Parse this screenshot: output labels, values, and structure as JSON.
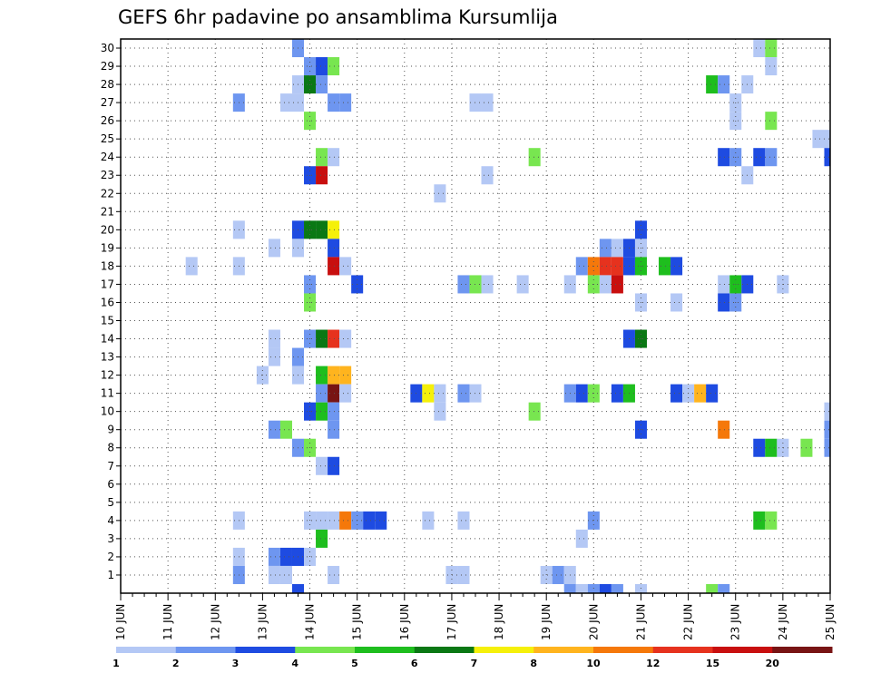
{
  "chart_data": {
    "type": "heatmap",
    "title": "GEFS 6hr padavine po ansamblima Kursumlija",
    "x_ticks": [
      "10 JUN",
      "11 JUN",
      "12 JUN",
      "13 JUN",
      "14 JUN",
      "15 JUN",
      "16 JUN",
      "17 JUN",
      "18 JUN",
      "19 JUN",
      "20 JUN",
      "21 JUN",
      "22 JUN",
      "23 JUN",
      "24 JUN",
      "25 JUN"
    ],
    "y_ticks": [
      1,
      2,
      3,
      4,
      5,
      6,
      7,
      8,
      9,
      10,
      11,
      12,
      13,
      14,
      15,
      16,
      17,
      18,
      19,
      20,
      21,
      22,
      23,
      24,
      25,
      26,
      27,
      28,
      29,
      30
    ],
    "x_range": [
      "10 JUN",
      "25 JUN"
    ],
    "y_range": [
      0,
      30
    ],
    "time_step_hours": 6,
    "grid": "dotted",
    "legend": {
      "position": "bottom",
      "colors": [
        "#b4c8f5",
        "#6e96f0",
        "#1e4be1",
        "#78e650",
        "#1ebe1e",
        "#0a7814",
        "#f5f00a",
        "#ffb41e",
        "#f5780a",
        "#e6321e",
        "#c80f0f",
        "#781414"
      ],
      "labels": [
        "1",
        "2",
        "3",
        "4",
        "5",
        "6",
        "7",
        "8",
        "10",
        "12",
        "15",
        "20"
      ]
    },
    "cells": [
      [
        "13 JUN 18Z",
        30,
        "#6e96f0"
      ],
      [
        "23 JUN 12Z",
        30,
        "#b4c8f5"
      ],
      [
        "23 JUN 18Z",
        30,
        "#78e650"
      ],
      [
        "14 JUN 00Z",
        29,
        "#6e96f0"
      ],
      [
        "14 JUN 06Z",
        29,
        "#1e4be1"
      ],
      [
        "14 JUN 12Z",
        29,
        "#78e650"
      ],
      [
        "23 JUN 18Z",
        29,
        "#b4c8f5"
      ],
      [
        "13 JUN 18Z",
        28,
        "#b4c8f5"
      ],
      [
        "14 JUN 00Z",
        28,
        "#0a7814"
      ],
      [
        "14 JUN 06Z",
        28,
        "#6e96f0"
      ],
      [
        "22 JUN 12Z",
        28,
        "#1ebe1e"
      ],
      [
        "22 JUN 18Z",
        28,
        "#6e96f0"
      ],
      [
        "23 JUN 06Z",
        28,
        "#b4c8f5"
      ],
      [
        "12 JUN 12Z",
        27,
        "#6e96f0"
      ],
      [
        "13 JUN 12Z",
        27,
        "#b4c8f5"
      ],
      [
        "13 JUN 18Z",
        27,
        "#b4c8f5"
      ],
      [
        "14 JUN 12Z",
        27,
        "#6e96f0"
      ],
      [
        "14 JUN 18Z",
        27,
        "#6e96f0"
      ],
      [
        "17 JUN 12Z",
        27,
        "#b4c8f5"
      ],
      [
        "17 JUN 18Z",
        27,
        "#b4c8f5"
      ],
      [
        "23 JUN 00Z",
        27,
        "#b4c8f5"
      ],
      [
        "14 JUN 00Z",
        26,
        "#78e650"
      ],
      [
        "23 JUN 00Z",
        26,
        "#b4c8f5"
      ],
      [
        "23 JUN 18Z",
        26,
        "#78e650"
      ],
      [
        "24 JUN 18Z",
        25,
        "#b4c8f5"
      ],
      [
        "25 JUN 00Z",
        25,
        "#b4c8f5"
      ],
      [
        "14 JUN 06Z",
        24,
        "#78e650"
      ],
      [
        "14 JUN 12Z",
        24,
        "#b4c8f5"
      ],
      [
        "18 JUN 18Z",
        24,
        "#78e650"
      ],
      [
        "22 JUN 18Z",
        24,
        "#1e4be1"
      ],
      [
        "23 JUN 00Z",
        24,
        "#6e96f0"
      ],
      [
        "23 JUN 12Z",
        24,
        "#1e4be1"
      ],
      [
        "23 JUN 18Z",
        24,
        "#6e96f0"
      ],
      [
        "25 JUN 00Z",
        24,
        "#1e4be1"
      ],
      [
        "14 JUN 00Z",
        23,
        "#1e4be1"
      ],
      [
        "14 JUN 06Z",
        23,
        "#c80f0f"
      ],
      [
        "17 JUN 18Z",
        23,
        "#b4c8f5"
      ],
      [
        "23 JUN 06Z",
        23,
        "#b4c8f5"
      ],
      [
        "16 JUN 18Z",
        22,
        "#b4c8f5"
      ],
      [
        "12 JUN 12Z",
        20,
        "#b4c8f5"
      ],
      [
        "13 JUN 18Z",
        20,
        "#1e4be1"
      ],
      [
        "14 JUN 00Z",
        20,
        "#0a7814"
      ],
      [
        "14 JUN 06Z",
        20,
        "#0a7814"
      ],
      [
        "14 JUN 12Z",
        20,
        "#f5f00a"
      ],
      [
        "21 JUN 00Z",
        20,
        "#1e4be1"
      ],
      [
        "13 JUN 06Z",
        19,
        "#b4c8f5"
      ],
      [
        "13 JUN 18Z",
        19,
        "#b4c8f5"
      ],
      [
        "14 JUN 12Z",
        19,
        "#1e4be1"
      ],
      [
        "20 JUN 06Z",
        19,
        "#6e96f0"
      ],
      [
        "20 JUN 12Z",
        19,
        "#b4c8f5"
      ],
      [
        "20 JUN 18Z",
        19,
        "#1e4be1"
      ],
      [
        "21 JUN 00Z",
        19,
        "#b4c8f5"
      ],
      [
        "11 JUN 12Z",
        18,
        "#b4c8f5"
      ],
      [
        "12 JUN 12Z",
        18,
        "#b4c8f5"
      ],
      [
        "14 JUN 12Z",
        18,
        "#c80f0f"
      ],
      [
        "14 JUN 18Z",
        18,
        "#b4c8f5"
      ],
      [
        "19 JUN 18Z",
        18,
        "#6e96f0"
      ],
      [
        "20 JUN 00Z",
        18,
        "#f5780a"
      ],
      [
        "20 JUN 06Z",
        18,
        "#e6321e"
      ],
      [
        "20 JUN 12Z",
        18,
        "#e6321e"
      ],
      [
        "20 JUN 18Z",
        18,
        "#1e4be1"
      ],
      [
        "21 JUN 00Z",
        18,
        "#1ebe1e"
      ],
      [
        "21 JUN 12Z",
        18,
        "#1ebe1e"
      ],
      [
        "21 JUN 18Z",
        18,
        "#1e4be1"
      ],
      [
        "14 JUN 00Z",
        17,
        "#6e96f0"
      ],
      [
        "15 JUN 00Z",
        17,
        "#1e4be1"
      ],
      [
        "17 JUN 06Z",
        17,
        "#6e96f0"
      ],
      [
        "17 JUN 12Z",
        17,
        "#78e650"
      ],
      [
        "17 JUN 18Z",
        17,
        "#b4c8f5"
      ],
      [
        "18 JUN 12Z",
        17,
        "#b4c8f5"
      ],
      [
        "19 JUN 12Z",
        17,
        "#b4c8f5"
      ],
      [
        "20 JUN 00Z",
        17,
        "#78e650"
      ],
      [
        "20 JUN 06Z",
        17,
        "#b4c8f5"
      ],
      [
        "20 JUN 12Z",
        17,
        "#c80f0f"
      ],
      [
        "22 JUN 18Z",
        17,
        "#b4c8f5"
      ],
      [
        "23 JUN 00Z",
        17,
        "#1ebe1e"
      ],
      [
        "23 JUN 06Z",
        17,
        "#1e4be1"
      ],
      [
        "24 JUN 00Z",
        17,
        "#b4c8f5"
      ],
      [
        "14 JUN 00Z",
        16,
        "#78e650"
      ],
      [
        "21 JUN 00Z",
        16,
        "#b4c8f5"
      ],
      [
        "21 JUN 18Z",
        16,
        "#b4c8f5"
      ],
      [
        "22 JUN 18Z",
        16,
        "#1e4be1"
      ],
      [
        "23 JUN 00Z",
        16,
        "#6e96f0"
      ],
      [
        "14 JUN 00Z",
        14,
        "#6e96f0"
      ],
      [
        "14 JUN 06Z",
        14,
        "#0a7814"
      ],
      [
        "14 JUN 12Z",
        14,
        "#e6321e"
      ],
      [
        "14 JUN 18Z",
        14,
        "#b4c8f5"
      ],
      [
        "20 JUN 18Z",
        14,
        "#1e4be1"
      ],
      [
        "21 JUN 00Z",
        14,
        "#0a7814"
      ],
      [
        "13 JUN 06Z",
        14,
        "#b4c8f5"
      ],
      [
        "13 JUN 06Z",
        13,
        "#b4c8f5"
      ],
      [
        "13 JUN 18Z",
        13,
        "#6e96f0"
      ],
      [
        "13 JUN 00Z",
        12,
        "#b4c8f5"
      ],
      [
        "13 JUN 18Z",
        12,
        "#b4c8f5"
      ],
      [
        "14 JUN 06Z",
        12,
        "#1ebe1e"
      ],
      [
        "14 JUN 12Z",
        12,
        "#ffb41e"
      ],
      [
        "14 JUN 18Z",
        12,
        "#ffb41e"
      ],
      [
        "14 JUN 06Z",
        11,
        "#6e96f0"
      ],
      [
        "14 JUN 12Z",
        11,
        "#781414"
      ],
      [
        "14 JUN 18Z",
        11,
        "#b4c8f5"
      ],
      [
        "16 JUN 06Z",
        11,
        "#1e4be1"
      ],
      [
        "16 JUN 12Z",
        11,
        "#f5f00a"
      ],
      [
        "16 JUN 18Z",
        11,
        "#b4c8f5"
      ],
      [
        "17 JUN 06Z",
        11,
        "#6e96f0"
      ],
      [
        "17 JUN 12Z",
        11,
        "#b4c8f5"
      ],
      [
        "19 JUN 12Z",
        11,
        "#6e96f0"
      ],
      [
        "19 JUN 18Z",
        11,
        "#1e4be1"
      ],
      [
        "20 JUN 00Z",
        11,
        "#78e650"
      ],
      [
        "20 JUN 12Z",
        11,
        "#1e4be1"
      ],
      [
        "20 JUN 18Z",
        11,
        "#1ebe1e"
      ],
      [
        "21 JUN 18Z",
        11,
        "#1e4be1"
      ],
      [
        "22 JUN 00Z",
        11,
        "#b4c8f5"
      ],
      [
        "22 JUN 06Z",
        11,
        "#ffb41e"
      ],
      [
        "22 JUN 12Z",
        11,
        "#1e4be1"
      ],
      [
        "14 JUN 00Z",
        10,
        "#1e4be1"
      ],
      [
        "14 JUN 06Z",
        10,
        "#1ebe1e"
      ],
      [
        "14 JUN 12Z",
        10,
        "#6e96f0"
      ],
      [
        "16 JUN 18Z",
        10,
        "#b4c8f5"
      ],
      [
        "18 JUN 18Z",
        10,
        "#78e650"
      ],
      [
        "25 JUN 00Z",
        10,
        "#b4c8f5"
      ],
      [
        "13 JUN 06Z",
        9,
        "#6e96f0"
      ],
      [
        "13 JUN 12Z",
        9,
        "#78e650"
      ],
      [
        "14 JUN 12Z",
        9,
        "#6e96f0"
      ],
      [
        "21 JUN 00Z",
        9,
        "#1e4be1"
      ],
      [
        "22 JUN 18Z",
        9,
        "#f5780a"
      ],
      [
        "25 JUN 00Z",
        9,
        "#6e96f0"
      ],
      [
        "13 JUN 18Z",
        8,
        "#6e96f0"
      ],
      [
        "14 JUN 00Z",
        8,
        "#78e650"
      ],
      [
        "23 JUN 12Z",
        8,
        "#1e4be1"
      ],
      [
        "23 JUN 18Z",
        8,
        "#1ebe1e"
      ],
      [
        "24 JUN 00Z",
        8,
        "#b4c8f5"
      ],
      [
        "24 JUN 12Z",
        8,
        "#78e650"
      ],
      [
        "25 JUN 00Z",
        8,
        "#6e96f0"
      ],
      [
        "14 JUN 06Z",
        7,
        "#b4c8f5"
      ],
      [
        "14 JUN 12Z",
        7,
        "#1e4be1"
      ],
      [
        "12 JUN 12Z",
        4,
        "#b4c8f5"
      ],
      [
        "14 JUN 00Z",
        4,
        "#b4c8f5"
      ],
      [
        "14 JUN 06Z",
        4,
        "#b4c8f5"
      ],
      [
        "14 JUN 12Z",
        4,
        "#b4c8f5"
      ],
      [
        "14 JUN 18Z",
        4,
        "#f5780a"
      ],
      [
        "15 JUN 00Z",
        4,
        "#6e96f0"
      ],
      [
        "15 JUN 06Z",
        4,
        "#1e4be1"
      ],
      [
        "15 JUN 12Z",
        4,
        "#1e4be1"
      ],
      [
        "16 JUN 12Z",
        4,
        "#b4c8f5"
      ],
      [
        "17 JUN 06Z",
        4,
        "#b4c8f5"
      ],
      [
        "20 JUN 00Z",
        4,
        "#6e96f0"
      ],
      [
        "23 JUN 12Z",
        4,
        "#1ebe1e"
      ],
      [
        "23 JUN 18Z",
        4,
        "#78e650"
      ],
      [
        "14 JUN 06Z",
        3,
        "#1ebe1e"
      ],
      [
        "19 JUN 18Z",
        3,
        "#b4c8f5"
      ],
      [
        "12 JUN 12Z",
        2,
        "#b4c8f5"
      ],
      [
        "13 JUN 12Z",
        2,
        "#1e4be1"
      ],
      [
        "13 JUN 18Z",
        2,
        "#1e4be1"
      ],
      [
        "13 JUN 06Z",
        2,
        "#6e96f0"
      ],
      [
        "14 JUN 00Z",
        2,
        "#b4c8f5"
      ],
      [
        "12 JUN 12Z",
        1,
        "#6e96f0"
      ],
      [
        "13 JUN 06Z",
        1,
        "#b4c8f5"
      ],
      [
        "13 JUN 12Z",
        1,
        "#b4c8f5"
      ],
      [
        "14 JUN 12Z",
        1,
        "#b4c8f5"
      ],
      [
        "17 JUN 00Z",
        1,
        "#b4c8f5"
      ],
      [
        "17 JUN 06Z",
        1,
        "#b4c8f5"
      ],
      [
        "19 JUN 00Z",
        1,
        "#b4c8f5"
      ],
      [
        "19 JUN 06Z",
        1,
        "#6e96f0"
      ],
      [
        "19 JUN 12Z",
        1,
        "#b4c8f5"
      ],
      [
        "13 JUN 18Z",
        0,
        "#1e4be1"
      ],
      [
        "19 JUN 12Z",
        0,
        "#6e96f0"
      ],
      [
        "19 JUN 18Z",
        0,
        "#b4c8f5"
      ],
      [
        "20 JUN 00Z",
        0,
        "#6e96f0"
      ],
      [
        "20 JUN 06Z",
        0,
        "#1e4be1"
      ],
      [
        "20 JUN 12Z",
        0,
        "#6e96f0"
      ],
      [
        "21 JUN 00Z",
        0,
        "#b4c8f5"
      ],
      [
        "22 JUN 12Z",
        0,
        "#78e650"
      ],
      [
        "22 JUN 18Z",
        0,
        "#6e96f0"
      ]
    ]
  }
}
